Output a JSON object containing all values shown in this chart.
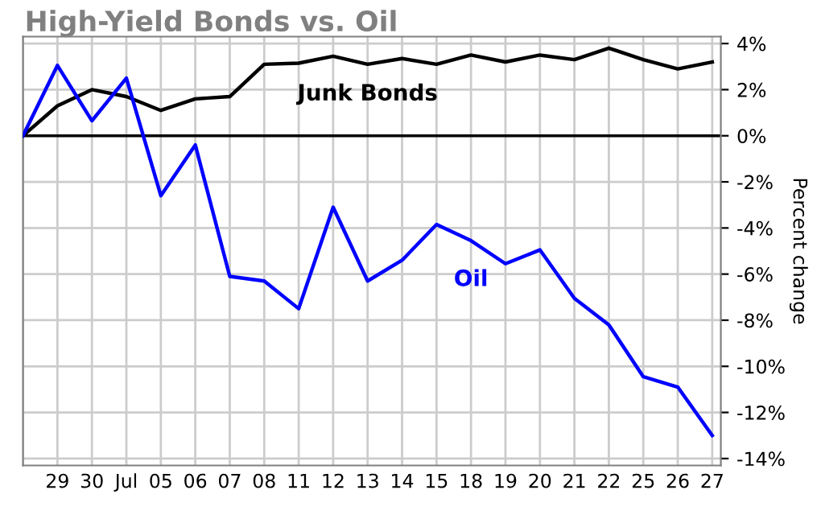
{
  "chart_data": {
    "type": "line",
    "title": "High-Yield Bonds vs. Oil",
    "ylabel": "Percent change",
    "categories": [
      null,
      "29",
      "30",
      "Jul",
      "05",
      "06",
      "07",
      "08",
      "11",
      "12",
      "13",
      "14",
      "15",
      "18",
      "19",
      "20",
      "21",
      "22",
      "25",
      "26",
      "27"
    ],
    "series": [
      {
        "name": "Junk Bonds",
        "color": "#000000",
        "values": [
          0,
          1.3,
          2.0,
          1.7,
          1.1,
          1.6,
          1.7,
          3.1,
          3.15,
          3.45,
          3.1,
          3.35,
          3.1,
          3.5,
          3.2,
          3.5,
          3.3,
          3.8,
          3.3,
          2.9,
          3.2
        ]
      },
      {
        "name": "Oil",
        "color": "#0000ff",
        "values": [
          0,
          3.05,
          0.65,
          2.5,
          -2.6,
          -0.4,
          -6.1,
          -6.3,
          -7.5,
          -3.1,
          -6.3,
          -5.4,
          -3.85,
          -4.55,
          -5.55,
          -4.95,
          -7.05,
          -8.2,
          -10.45,
          -10.9,
          -13.0
        ]
      }
    ],
    "ylim": [
      -14.3,
      4.3
    ],
    "yticks": [
      {
        "value": 4,
        "label": "4%"
      },
      {
        "value": 2,
        "label": "2%"
      },
      {
        "value": 0,
        "label": "0%"
      },
      {
        "value": -2,
        "label": "-2%"
      },
      {
        "value": -4,
        "label": "-4%"
      },
      {
        "value": -6,
        "label": "-6%"
      },
      {
        "value": -8,
        "label": "-8%"
      },
      {
        "value": -10,
        "label": "-10%"
      },
      {
        "value": -12,
        "label": "-12%"
      },
      {
        "value": -14,
        "label": "-14%"
      }
    ],
    "ref_lines": [
      {
        "axis": "y",
        "value": 0,
        "color": "#000000"
      }
    ],
    "grid": true,
    "legend": false,
    "marker": "none",
    "line_style": "solid"
  }
}
